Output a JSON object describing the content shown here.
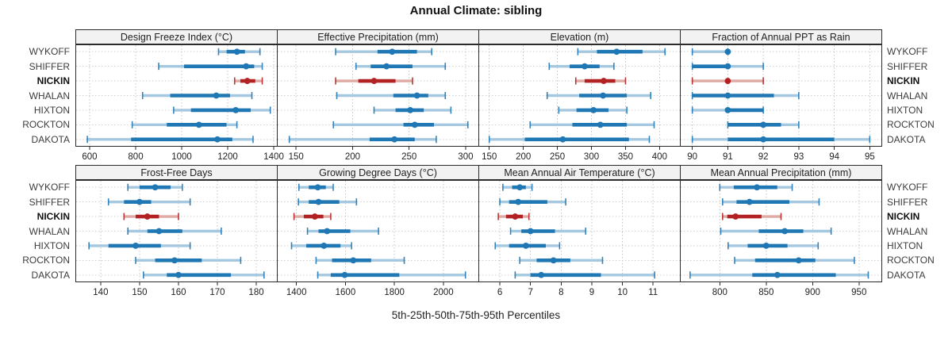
{
  "title": "Annual Climate: sibling",
  "axis_caption": "5th-25th-50th-75th-95th Percentiles",
  "stations": [
    "WYKOFF",
    "SHIFFER",
    "NICKIN",
    "WHALAN",
    "HIXTON",
    "ROCKTON",
    "DAKOTA"
  ],
  "highlight_station": "NICKIN",
  "colors": {
    "series_dark": "#1F77B4",
    "series_light": "#A5C8E1",
    "highlight_dark": "#B22222",
    "highlight_light": "#DFA9A4",
    "grid": "#C6C6C6",
    "row_guide": "#CFCFCF",
    "panel_border": "#2B2B2B",
    "header_bg": "#F2F2F2",
    "tick_text": "#222222"
  },
  "chart_data": {
    "type": "scatter",
    "variant": "percentile-interval-dotplot",
    "percentiles": [
      5,
      25,
      50,
      75,
      95
    ],
    "grid": "dotted",
    "panels": [
      {
        "title": "Design Freeze Index (°C)",
        "grid_row": 0,
        "grid_col": 0,
        "xlim": [
          538,
          1417
        ],
        "ticks": [
          600,
          800,
          1000,
          1200,
          1400
        ],
        "values": [
          [
            1160,
            1195,
            1240,
            1275,
            1340
          ],
          [
            900,
            1010,
            1280,
            1315,
            1350
          ],
          [
            1230,
            1255,
            1285,
            1320,
            1350
          ],
          [
            830,
            950,
            1150,
            1210,
            1305
          ],
          [
            965,
            1040,
            1235,
            1300,
            1385
          ],
          [
            785,
            935,
            1075,
            1195,
            1240
          ],
          [
            590,
            780,
            1155,
            1220,
            1310
          ]
        ]
      },
      {
        "title": "Effective Precipitation (mm)",
        "grid_row": 0,
        "grid_col": 1,
        "xlim": [
          133,
          312
        ],
        "ticks": [
          150,
          200,
          250,
          300
        ],
        "values": [
          [
            185,
            222,
            235,
            257,
            270
          ],
          [
            203,
            216,
            230,
            253,
            282
          ],
          [
            185,
            205,
            219,
            238,
            253
          ],
          [
            186,
            236,
            257,
            267,
            282
          ],
          [
            219,
            238,
            251,
            263,
            287
          ],
          [
            183,
            245,
            255,
            272,
            302
          ],
          [
            144,
            215,
            237,
            255,
            274
          ]
        ]
      },
      {
        "title": "Elevation (m)",
        "grid_row": 0,
        "grid_col": 2,
        "xlim": [
          134,
          431
        ],
        "ticks": [
          150,
          200,
          250,
          300,
          350,
          400
        ],
        "values": [
          [
            280,
            308,
            337,
            375,
            408
          ],
          [
            238,
            268,
            290,
            312,
            333
          ],
          [
            277,
            290,
            318,
            335,
            350
          ],
          [
            235,
            282,
            317,
            352,
            387
          ],
          [
            252,
            278,
            303,
            325,
            352
          ],
          [
            210,
            272,
            313,
            352,
            392
          ],
          [
            150,
            202,
            258,
            355,
            385
          ]
        ]
      },
      {
        "title": "Fraction of Annual PPT as Rain",
        "grid_row": 0,
        "grid_col": 3,
        "xlim": [
          89.65,
          95.35
        ],
        "ticks": [
          90,
          91,
          92,
          93,
          94,
          95
        ],
        "values": [
          [
            90,
            91,
            91,
            91,
            91
          ],
          [
            90,
            90,
            91,
            91,
            92
          ],
          [
            90,
            91,
            91,
            91,
            92
          ],
          [
            90,
            90,
            91,
            92.3,
            93
          ],
          [
            90,
            91,
            91,
            92,
            92
          ],
          [
            91,
            91,
            92,
            92.5,
            93
          ],
          [
            90,
            91,
            92,
            94,
            95
          ]
        ]
      },
      {
        "title": "Frost-Free Days",
        "grid_row": 1,
        "grid_col": 0,
        "xlim": [
          133.5,
          185.5
        ],
        "ticks": [
          140,
          150,
          160,
          170,
          180
        ],
        "values": [
          [
            147,
            150,
            154,
            158,
            161
          ],
          [
            142,
            146,
            150,
            153,
            163
          ],
          [
            146,
            149,
            152,
            155,
            160
          ],
          [
            147,
            152,
            155,
            161,
            171
          ],
          [
            137,
            142,
            149,
            155.5,
            163
          ],
          [
            149,
            154,
            159,
            166,
            176
          ],
          [
            151,
            157,
            160,
            173.5,
            182
          ]
        ]
      },
      {
        "title": "Growing Degree Days (°C)",
        "grid_row": 1,
        "grid_col": 1,
        "xlim": [
          1320,
          2146
        ],
        "ticks": [
          1400,
          1600,
          1800,
          2000
        ],
        "values": [
          [
            1410,
            1450,
            1487,
            1520,
            1550
          ],
          [
            1408,
            1450,
            1490,
            1575,
            1645
          ],
          [
            1390,
            1430,
            1475,
            1510,
            1540
          ],
          [
            1445,
            1490,
            1525,
            1620,
            1735
          ],
          [
            1380,
            1440,
            1512,
            1580,
            1625
          ],
          [
            1480,
            1545,
            1632,
            1705,
            1840
          ],
          [
            1487,
            1540,
            1597,
            1820,
            2090
          ]
        ]
      },
      {
        "title": "Mean Annual Air Temperature (°C)",
        "grid_row": 1,
        "grid_col": 2,
        "xlim": [
          5.3,
          11.9
        ],
        "ticks": [
          6,
          7,
          8,
          9,
          10,
          11
        ],
        "values": [
          [
            6.1,
            6.4,
            6.65,
            6.85,
            7.05
          ],
          [
            6.0,
            6.3,
            6.6,
            7.55,
            8.15
          ],
          [
            5.95,
            6.2,
            6.5,
            6.75,
            6.95
          ],
          [
            6.35,
            6.7,
            7.0,
            7.8,
            8.8
          ],
          [
            5.85,
            6.3,
            6.85,
            7.5,
            7.95
          ],
          [
            6.65,
            7.2,
            7.75,
            8.3,
            9.35
          ],
          [
            6.5,
            7.0,
            7.35,
            9.3,
            11.05
          ]
        ]
      },
      {
        "title": "Mean Annual Precipitation (mm)",
        "grid_row": 1,
        "grid_col": 3,
        "xlim": [
          757,
          975
        ],
        "ticks": [
          800,
          850,
          900,
          950
        ],
        "values": [
          [
            800,
            815,
            840,
            862,
            878
          ],
          [
            803,
            818,
            832,
            875,
            907
          ],
          [
            803,
            808,
            817,
            845,
            866
          ],
          [
            801,
            842,
            870,
            890,
            920
          ],
          [
            809,
            830,
            850,
            873,
            906
          ],
          [
            816,
            838,
            885,
            903,
            945
          ],
          [
            768,
            835,
            862,
            925,
            960
          ]
        ]
      }
    ]
  }
}
